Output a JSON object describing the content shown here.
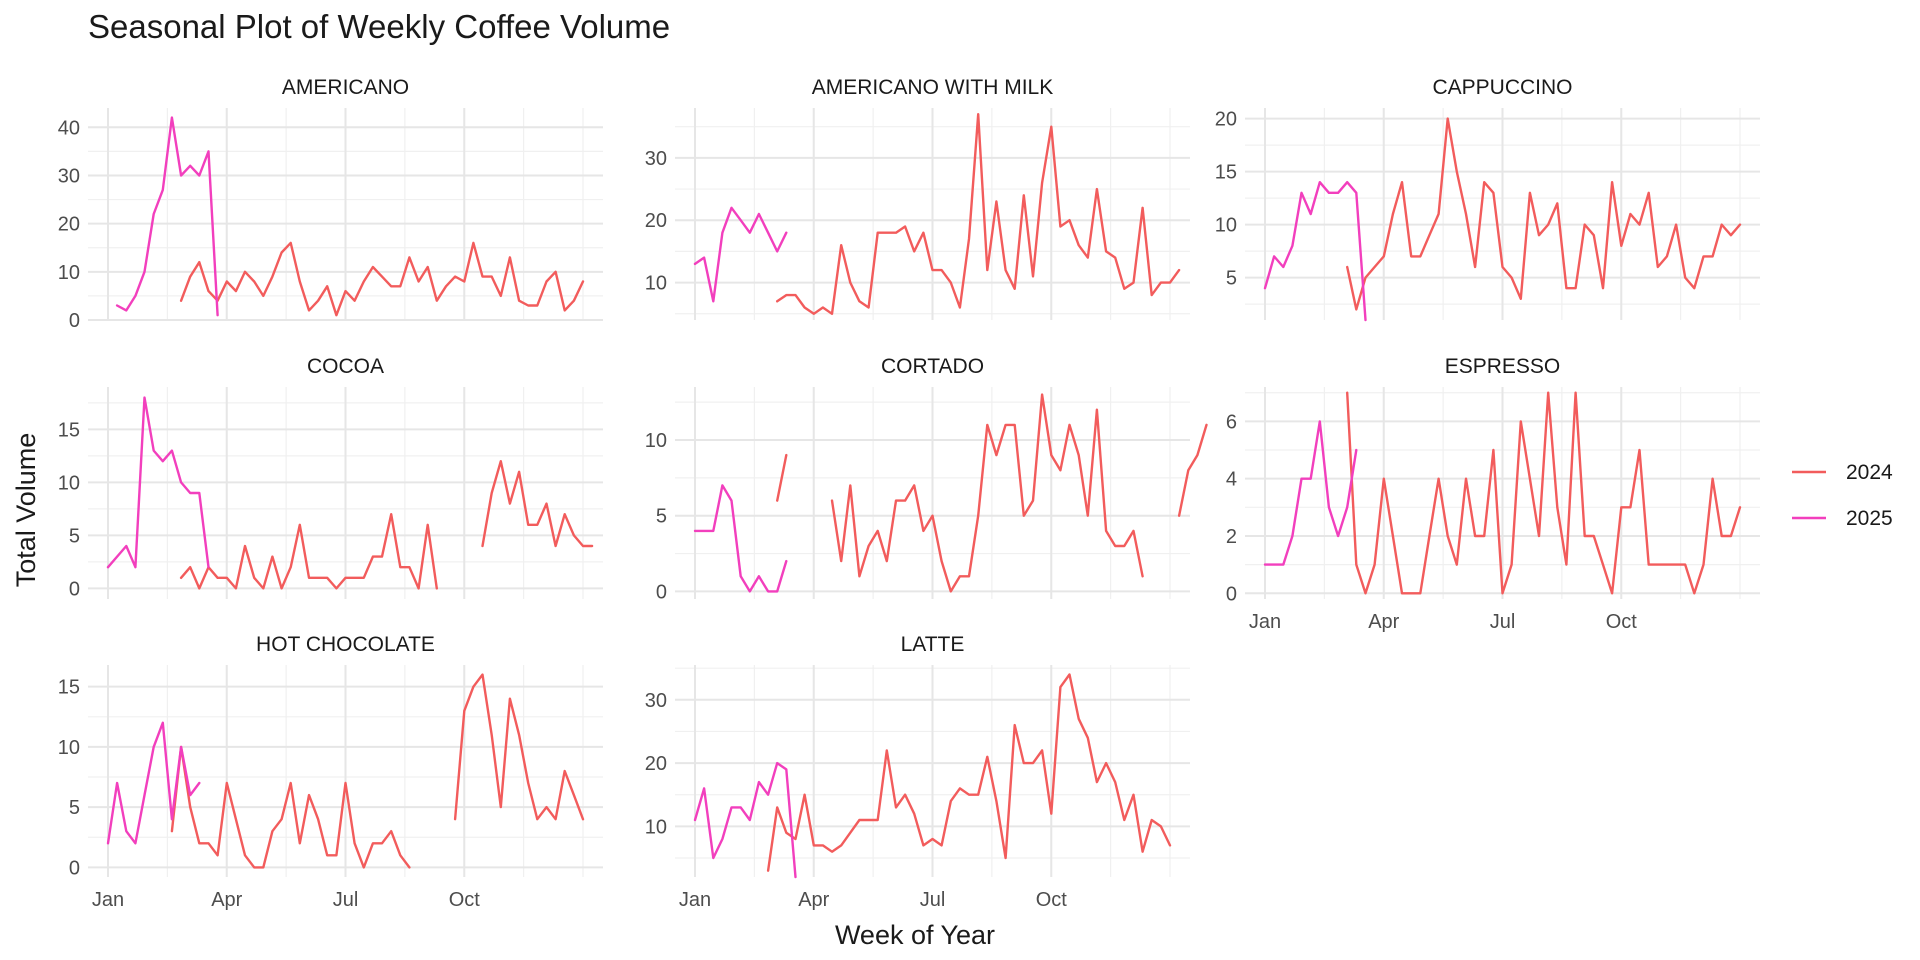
{
  "chart_data": {
    "type": "line",
    "title": "Seasonal Plot of Weekly Coffee Volume",
    "xlabel": "Week of Year",
    "ylabel": "Total Volume",
    "x_unit": "week",
    "xlim": [
      1,
      53
    ],
    "x_ticks": [
      {
        "label": "Jan",
        "x": 1
      },
      {
        "label": "Apr",
        "x": 14
      },
      {
        "label": "Jul",
        "x": 27
      },
      {
        "label": "Oct",
        "x": 40
      }
    ],
    "grid": true,
    "legend": {
      "position": "right",
      "entries": [
        {
          "name": "2024",
          "color": "#f25c5c"
        },
        {
          "name": "2025",
          "color": "#f23fbd"
        }
      ]
    },
    "panels": [
      {
        "name": "AMERICANO",
        "ylim": [
          0,
          44
        ],
        "y_ticks": [
          0,
          10,
          20,
          30,
          40
        ],
        "series": [
          {
            "name": "2024",
            "x_start": 9,
            "values": [
              4,
              9,
              12,
              6,
              4,
              8,
              6,
              10,
              8,
              5,
              9,
              14,
              16,
              8,
              2,
              4,
              7,
              1,
              6,
              4,
              8,
              11,
              9,
              7,
              7,
              13,
              8,
              11,
              4,
              7,
              9,
              8,
              16,
              9,
              9,
              5,
              13,
              4,
              3,
              3,
              8,
              10,
              2,
              4,
              8
            ]
          },
          {
            "name": "2025",
            "x_start": 2,
            "values": [
              3,
              2,
              5,
              10,
              22,
              27,
              42,
              30,
              32,
              30,
              35,
              1
            ]
          }
        ]
      },
      {
        "name": "AMERICANO WITH MILK",
        "ylim": [
          4,
          38
        ],
        "y_ticks": [
          10,
          20,
          30
        ],
        "series": [
          {
            "name": "2024",
            "x_start": 10,
            "values": [
              7,
              8,
              8,
              6,
              5,
              6,
              5,
              16,
              10,
              7,
              6,
              18,
              18,
              18,
              19,
              15,
              18,
              12,
              12,
              10,
              6,
              17,
              37,
              12,
              23,
              12,
              9,
              24,
              11,
              26,
              35,
              19,
              20,
              16,
              14,
              25,
              15,
              14,
              9,
              10,
              22,
              8,
              10,
              10,
              12
            ]
          },
          {
            "name": "2025",
            "x_start": 1,
            "values": [
              13,
              14,
              7,
              18,
              22,
              20,
              18,
              21,
              18,
              15,
              18
            ]
          }
        ]
      },
      {
        "name": "CAPPUCCINO",
        "ylim": [
          1,
          21
        ],
        "y_ticks": [
          5,
          10,
          15,
          20
        ],
        "series": [
          {
            "name": "2024",
            "x_start": 10,
            "values": [
              6,
              2,
              5,
              6,
              7,
              11,
              14,
              7,
              7,
              9,
              11,
              20,
              15,
              11,
              6,
              14,
              13,
              6,
              5,
              3,
              13,
              9,
              10,
              12,
              4,
              4,
              10,
              9,
              4,
              14,
              8,
              11,
              10,
              13,
              6,
              7,
              10,
              5,
              4,
              7,
              7,
              10,
              9,
              10
            ]
          },
          {
            "name": "2025",
            "x_start": 1,
            "values": [
              4,
              7,
              6,
              8,
              13,
              11,
              14,
              13,
              13,
              14,
              13,
              1
            ]
          }
        ]
      },
      {
        "name": "COCOA",
        "ylim": [
          -1,
          19
        ],
        "y_ticks": [
          0,
          5,
          10,
          15
        ],
        "series": [
          {
            "name": "2024",
            "x_start": 9,
            "values": [
              1,
              2,
              0,
              2,
              1,
              1,
              0,
              4,
              1,
              0,
              3,
              0,
              2,
              6,
              1,
              1,
              1,
              0,
              1,
              1,
              1,
              3,
              3,
              7,
              2,
              2,
              0,
              6,
              0,
              null,
              null,
              null,
              null,
              4,
              9,
              12,
              8,
              11,
              6,
              6,
              8,
              4,
              7,
              5,
              4,
              4
            ]
          },
          {
            "name": "2025",
            "x_start": 1,
            "values": [
              2,
              3,
              4,
              2,
              18,
              13,
              12,
              13,
              10,
              9,
              9,
              2
            ]
          }
        ]
      },
      {
        "name": "CORTADO",
        "ylim": [
          -0.5,
          13.5
        ],
        "y_ticks": [
          0,
          5,
          10
        ],
        "series": [
          {
            "name": "2024",
            "x_start": 10,
            "values": [
              6,
              9,
              null,
              null,
              null,
              null,
              6,
              2,
              7,
              1,
              3,
              4,
              2,
              6,
              6,
              7,
              4,
              5,
              2,
              0,
              1,
              1,
              5,
              11,
              9,
              11,
              11,
              5,
              6,
              13,
              9,
              8,
              11,
              9,
              5,
              12,
              4,
              3,
              3,
              4,
              1,
              null,
              null,
              null,
              5,
              8,
              9,
              11
            ]
          },
          {
            "name": "2025",
            "x_start": 1,
            "values": [
              4,
              4,
              4,
              7,
              6,
              1,
              0,
              1,
              0,
              0,
              2
            ]
          }
        ]
      },
      {
        "name": "ESPRESSO",
        "ylim": [
          -0.2,
          7.2
        ],
        "y_ticks": [
          0,
          2,
          4,
          6
        ],
        "series": [
          {
            "name": "2024",
            "x_start": 10,
            "values": [
              7,
              1,
              0,
              1,
              4,
              2,
              0,
              0,
              0,
              2,
              4,
              2,
              1,
              4,
              2,
              2,
              5,
              0,
              1,
              6,
              4,
              2,
              7,
              3,
              1,
              7,
              2,
              2,
              1,
              0,
              3,
              3,
              5,
              1,
              1,
              1,
              1,
              1,
              0,
              1,
              4,
              2,
              2,
              3
            ]
          },
          {
            "name": "2025",
            "x_start": 1,
            "values": [
              1,
              1,
              1,
              2,
              4,
              4,
              6,
              3,
              2,
              3,
              5
            ]
          }
        ]
      },
      {
        "name": "HOT CHOCOLATE",
        "ylim": [
          -0.8,
          16.8
        ],
        "y_ticks": [
          0,
          5,
          10,
          15
        ],
        "series": [
          {
            "name": "2024",
            "x_start": 8,
            "values": [
              3,
              10,
              5,
              2,
              2,
              1,
              7,
              4,
              1,
              0,
              0,
              3,
              4,
              7,
              2,
              6,
              4,
              1,
              1,
              7,
              2,
              0,
              2,
              2,
              3,
              1,
              0,
              null,
              null,
              null,
              null,
              4,
              13,
              15,
              16,
              11,
              5,
              14,
              11,
              7,
              4,
              5,
              4,
              8,
              6,
              4
            ]
          },
          {
            "name": "2025",
            "x_start": 1,
            "values": [
              2,
              7,
              3,
              2,
              6,
              10,
              12,
              4,
              10,
              6,
              7
            ]
          }
        ]
      },
      {
        "name": "LATTE",
        "ylim": [
          2,
          35.5
        ],
        "y_ticks": [
          10,
          20,
          30
        ],
        "series": [
          {
            "name": "2024",
            "x_start": 9,
            "values": [
              3,
              13,
              9,
              8,
              15,
              7,
              7,
              6,
              7,
              9,
              11,
              11,
              11,
              22,
              13,
              15,
              12,
              7,
              8,
              7,
              14,
              16,
              15,
              15,
              21,
              14,
              5,
              26,
              20,
              20,
              22,
              12,
              32,
              34,
              27,
              24,
              17,
              20,
              17,
              11,
              15,
              6,
              11,
              10,
              7
            ]
          },
          {
            "name": "2025",
            "x_start": 1,
            "values": [
              11,
              16,
              5,
              8,
              13,
              13,
              11,
              17,
              15,
              20,
              19,
              2
            ]
          }
        ]
      }
    ]
  }
}
